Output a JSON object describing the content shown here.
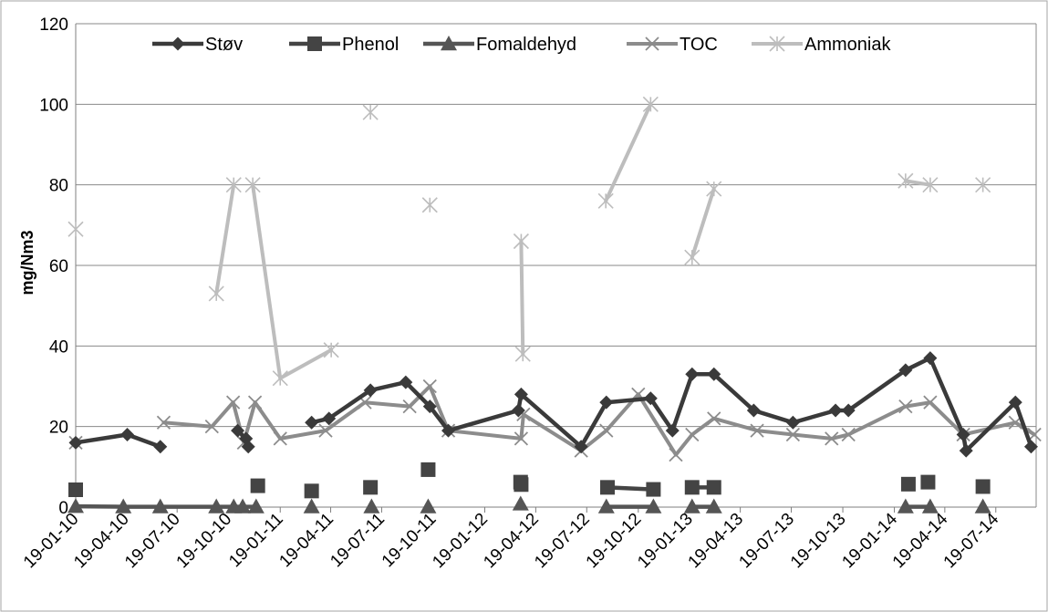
{
  "chart_data": {
    "type": "line",
    "title": "",
    "xlabel": "",
    "ylabel": "mg/Nm3",
    "ylim": [
      0,
      120
    ],
    "yticks": [
      0,
      20,
      40,
      60,
      80,
      100,
      120
    ],
    "xlim": [
      "2010-01-19",
      "2014-09-29"
    ],
    "xticks": [
      {
        "date": "2010-01-19",
        "label": "19-01-10"
      },
      {
        "date": "2010-04-19",
        "label": "19-04-10"
      },
      {
        "date": "2010-07-19",
        "label": "19-07-10"
      },
      {
        "date": "2010-10-19",
        "label": "19-10-10"
      },
      {
        "date": "2011-01-19",
        "label": "19-01-11"
      },
      {
        "date": "2011-04-19",
        "label": "19-04-11"
      },
      {
        "date": "2011-07-19",
        "label": "19-07-11"
      },
      {
        "date": "2011-10-19",
        "label": "19-10-11"
      },
      {
        "date": "2012-01-19",
        "label": "19-01-12"
      },
      {
        "date": "2012-04-19",
        "label": "19-04-12"
      },
      {
        "date": "2012-07-19",
        "label": "19-07-12"
      },
      {
        "date": "2012-10-19",
        "label": "19-10-12"
      },
      {
        "date": "2013-01-19",
        "label": "19-01-13"
      },
      {
        "date": "2013-04-19",
        "label": "19-04-13"
      },
      {
        "date": "2013-07-19",
        "label": "19-07-13"
      },
      {
        "date": "2013-10-19",
        "label": "19-10-13"
      },
      {
        "date": "2014-01-19",
        "label": "19-01-14"
      },
      {
        "date": "2014-04-19",
        "label": "19-04-14"
      },
      {
        "date": "2014-07-19",
        "label": "19-07-14"
      }
    ],
    "grid": "horizontal",
    "legend_position": "top",
    "series": [
      {
        "name": "Støv",
        "color": "#3a3a3a",
        "marker": "diamond",
        "segments": [
          [
            [
              "2010-01-19",
              16
            ],
            [
              "2010-04-21",
              18
            ],
            [
              "2010-06-19",
              15
            ]
          ],
          [
            [
              "2010-11-04",
              19
            ],
            [
              "2010-11-19",
              17
            ],
            [
              "2010-11-23",
              15
            ]
          ],
          [
            [
              "2011-03-16",
              21
            ],
            [
              "2011-04-16",
              22
            ],
            [
              "2011-06-29",
              29
            ],
            [
              "2011-08-31",
              31
            ],
            [
              "2011-10-13",
              25
            ],
            [
              "2011-11-15",
              19
            ],
            [
              "2012-03-19",
              24
            ],
            [
              "2012-03-24",
              28
            ],
            [
              "2012-07-09",
              15
            ],
            [
              "2012-08-23",
              26
            ],
            [
              "2012-11-10",
              27
            ],
            [
              "2012-12-19",
              19
            ],
            [
              "2013-01-23",
              33
            ],
            [
              "2013-03-03",
              33
            ],
            [
              "2013-05-13",
              24
            ],
            [
              "2013-07-22",
              21
            ],
            [
              "2013-10-06",
              24
            ],
            [
              "2013-10-29",
              24
            ],
            [
              "2014-02-08",
              34
            ],
            [
              "2014-03-24",
              37
            ],
            [
              "2014-05-22",
              18
            ],
            [
              "2014-05-27",
              14
            ],
            [
              "2014-08-23",
              26
            ],
            [
              "2014-09-20",
              15
            ]
          ]
        ]
      },
      {
        "name": "Phenol",
        "color": "#444444",
        "marker": "square",
        "segments": [
          [
            [
              "2010-01-19",
              4.3
            ]
          ],
          [
            [
              "2010-12-10",
              5.3
            ]
          ],
          [
            [
              "2011-03-16",
              4.0
            ]
          ],
          [
            [
              "2011-06-29",
              4.9
            ]
          ],
          [
            [
              "2011-10-10",
              9.3
            ]
          ],
          [
            [
              "2012-03-23",
              6.2
            ]
          ],
          [
            [
              "2012-03-24",
              5.6
            ]
          ],
          [
            [
              "2012-08-25",
              4.9
            ],
            [
              "2012-11-15",
              4.4
            ]
          ],
          [
            [
              "2013-01-23",
              4.9
            ],
            [
              "2013-03-03",
              4.9
            ]
          ],
          [
            [
              "2014-02-13",
              5.7
            ]
          ],
          [
            [
              "2014-03-20",
              6.2
            ]
          ],
          [
            [
              "2014-06-26",
              5.1
            ]
          ]
        ]
      },
      {
        "name": "Fomaldehyd",
        "color": "#555555",
        "marker": "triangle",
        "segments": [
          [
            [
              "2010-01-19",
              0.2
            ],
            [
              "2010-04-14",
              0.1
            ],
            [
              "2010-06-19",
              0.1
            ],
            [
              "2010-09-27",
              0.1
            ],
            [
              "2010-10-28",
              0.1
            ],
            [
              "2010-11-13",
              0.1
            ],
            [
              "2010-12-07",
              0.1
            ]
          ],
          [
            [
              "2011-03-16",
              0.1
            ]
          ],
          [
            [
              "2011-07-01",
              0.1
            ]
          ],
          [
            [
              "2011-10-10",
              0.1
            ]
          ],
          [
            [
              "2012-03-23",
              0.8
            ]
          ],
          [
            [
              "2012-08-23",
              0.1
            ],
            [
              "2012-11-15",
              0.1
            ]
          ],
          [
            [
              "2013-01-23",
              0.1
            ],
            [
              "2013-03-03",
              0.1
            ]
          ],
          [
            [
              "2014-02-08",
              0.1
            ],
            [
              "2014-03-24",
              0.1
            ]
          ],
          [
            [
              "2014-06-26",
              0.1
            ]
          ]
        ]
      },
      {
        "name": "TOC",
        "color": "#8c8c8c",
        "marker": "x",
        "segments": [
          [
            [
              "2010-01-19",
              16
            ]
          ],
          [
            [
              "2010-06-25",
              21
            ],
            [
              "2010-09-19",
              20
            ],
            [
              "2010-10-27",
              26
            ],
            [
              "2010-11-15",
              16
            ],
            [
              "2010-12-05",
              26
            ],
            [
              "2011-01-19",
              17
            ],
            [
              "2011-04-10",
              19
            ],
            [
              "2011-06-19",
              26
            ],
            [
              "2011-09-07",
              25
            ],
            [
              "2011-10-13",
              30
            ],
            [
              "2011-11-15",
              19
            ],
            [
              "2012-03-24",
              17
            ],
            [
              "2012-03-28",
              23
            ],
            [
              "2012-07-09",
              14
            ],
            [
              "2012-08-23",
              19
            ],
            [
              "2012-10-19",
              28
            ],
            [
              "2012-12-25",
              13
            ],
            [
              "2013-01-23",
              18
            ],
            [
              "2013-03-03",
              22
            ],
            [
              "2013-05-19",
              19
            ],
            [
              "2013-07-22",
              18
            ],
            [
              "2013-09-29",
              17
            ],
            [
              "2013-10-29",
              18
            ],
            [
              "2014-02-08",
              25
            ],
            [
              "2014-03-24",
              26
            ],
            [
              "2014-05-22",
              18
            ],
            [
              "2014-08-23",
              21
            ],
            [
              "2014-09-26",
              18
            ]
          ]
        ]
      },
      {
        "name": "Ammoniak",
        "color": "#bdbdbd",
        "marker": "star",
        "segments": [
          [
            [
              "2010-01-19",
              69
            ]
          ],
          [
            [
              "2010-09-27",
              53
            ],
            [
              "2010-10-28",
              80
            ]
          ],
          [
            [
              "2010-12-01",
              80
            ],
            [
              "2011-01-19",
              32
            ],
            [
              "2011-04-20",
              39
            ]
          ],
          [
            [
              "2011-06-29",
              98
            ]
          ],
          [
            [
              "2011-10-13",
              75
            ]
          ],
          [
            [
              "2012-03-24",
              66
            ],
            [
              "2012-03-27",
              38
            ]
          ],
          [
            [
              "2012-08-22",
              76
            ],
            [
              "2012-11-10",
              100
            ]
          ],
          [
            [
              "2013-01-23",
              62
            ],
            [
              "2013-03-03",
              79
            ]
          ],
          [
            [
              "2014-02-08",
              81
            ],
            [
              "2014-03-24",
              80
            ]
          ],
          [
            [
              "2014-06-26",
              80
            ]
          ]
        ]
      }
    ]
  }
}
